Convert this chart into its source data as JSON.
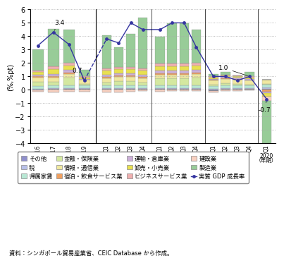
{
  "ylabel": "(%,%pt)",
  "source": "資料：シンガポール貿易産業省、CEIC Database から作成。",
  "categories": [
    "その他",
    "税",
    "帰属家賃",
    "金融・保険業",
    "情報・通信業",
    "宿泊・飲食サービス業",
    "運輸・倉庫業",
    "卸売・小売業",
    "ビジネスサービス業",
    "建設業",
    "製造業"
  ],
  "colors": [
    "#9090cc",
    "#b8c0e8",
    "#b8e8d4",
    "#d4e8a0",
    "#f0e8a0",
    "#f0a060",
    "#ccb0d8",
    "#e8e050",
    "#f0b0b0",
    "#f8d0c0",
    "#98cc98"
  ],
  "annual_labels": [
    "2016",
    "2017",
    "2018",
    "2019"
  ],
  "annual_data": [
    [
      -0.05,
      0.05,
      0.05,
      0.05
    ],
    [
      0.1,
      0.1,
      0.1,
      0.1
    ],
    [
      0.2,
      0.2,
      0.2,
      0.2
    ],
    [
      0.3,
      0.25,
      0.55,
      0.1
    ],
    [
      0.3,
      0.3,
      0.3,
      0.3
    ],
    [
      0.1,
      0.1,
      0.1,
      0.02
    ],
    [
      0.15,
      0.2,
      0.2,
      0.05
    ],
    [
      0.2,
      0.35,
      0.3,
      0.1
    ],
    [
      0.1,
      0.2,
      0.2,
      0.1
    ],
    [
      -0.1,
      -0.2,
      -0.15,
      -0.15
    ],
    [
      1.55,
      2.8,
      2.5,
      0.45
    ]
  ],
  "quarterly_data": [
    [
      0.05,
      0.05,
      0.05,
      0.05,
      0.05,
      0.05,
      0.05,
      0.05,
      -0.1,
      0.05,
      0.05,
      0.05,
      0.1
    ],
    [
      0.1,
      0.1,
      0.1,
      0.1,
      0.1,
      0.1,
      0.1,
      0.1,
      0.1,
      0.1,
      0.1,
      0.1,
      0.1
    ],
    [
      0.2,
      0.2,
      0.2,
      0.2,
      0.2,
      0.2,
      0.2,
      0.2,
      0.2,
      0.2,
      0.2,
      0.2,
      0.2
    ],
    [
      0.2,
      0.3,
      0.3,
      0.2,
      0.5,
      0.5,
      0.5,
      0.55,
      0.1,
      0.15,
      0.1,
      0.05,
      0.05
    ],
    [
      0.3,
      0.3,
      0.3,
      0.3,
      0.3,
      0.3,
      0.3,
      0.3,
      0.3,
      0.3,
      0.3,
      0.3,
      0.3
    ],
    [
      0.1,
      0.1,
      0.1,
      0.1,
      0.1,
      0.1,
      0.1,
      0.1,
      0.05,
      0.05,
      0.05,
      0.03,
      -0.15
    ],
    [
      0.2,
      0.2,
      0.2,
      0.2,
      0.2,
      0.2,
      0.2,
      0.2,
      0.05,
      0.1,
      0.1,
      0.1,
      -0.1
    ],
    [
      0.3,
      0.3,
      0.3,
      0.3,
      0.3,
      0.3,
      0.3,
      0.3,
      0.1,
      0.1,
      0.1,
      0.1,
      -0.25
    ],
    [
      0.15,
      0.15,
      0.15,
      0.15,
      0.2,
      0.2,
      0.2,
      0.2,
      0.1,
      0.1,
      0.05,
      0.1,
      0.02
    ],
    [
      -0.2,
      -0.2,
      -0.15,
      -0.1,
      -0.15,
      -0.1,
      -0.1,
      -0.1,
      -0.1,
      -0.1,
      -0.1,
      -0.05,
      -0.3
    ],
    [
      2.5,
      1.5,
      2.5,
      3.8,
      2.0,
      3.0,
      3.0,
      2.5,
      0.2,
      0.2,
      0.0,
      0.3,
      -3.2
    ]
  ],
  "gdp_annual": [
    3.3,
    4.3,
    3.4,
    0.7
  ],
  "gdp_quarterly": [
    3.8,
    3.5,
    5.0,
    4.5,
    4.5,
    5.0,
    5.0,
    3.2,
    1.0,
    1.0,
    0.7,
    1.0,
    -0.7
  ],
  "line_color": "#3535a0",
  "line_markersize": 3.5,
  "line_linewidth": 1.0,
  "legend_rows": [
    [
      [
        "その他",
        0
      ],
      [
        "税",
        1
      ],
      [
        "帰属家賃",
        2
      ],
      [
        "金融・保険業",
        3
      ]
    ],
    [
      [
        "情報・通信業",
        4
      ],
      [
        "宿泊・飲食サービス業",
        5
      ]
    ],
    [
      [
        "運輸・倉庫業",
        6
      ],
      [
        "卸売・小売業",
        7
      ],
      [
        "ビジネスサービス業",
        8
      ]
    ],
    [
      [
        "建設業",
        9
      ],
      [
        "製造業",
        10
      ],
      [
        "実質 GDP 成長率",
        -1
      ]
    ]
  ]
}
